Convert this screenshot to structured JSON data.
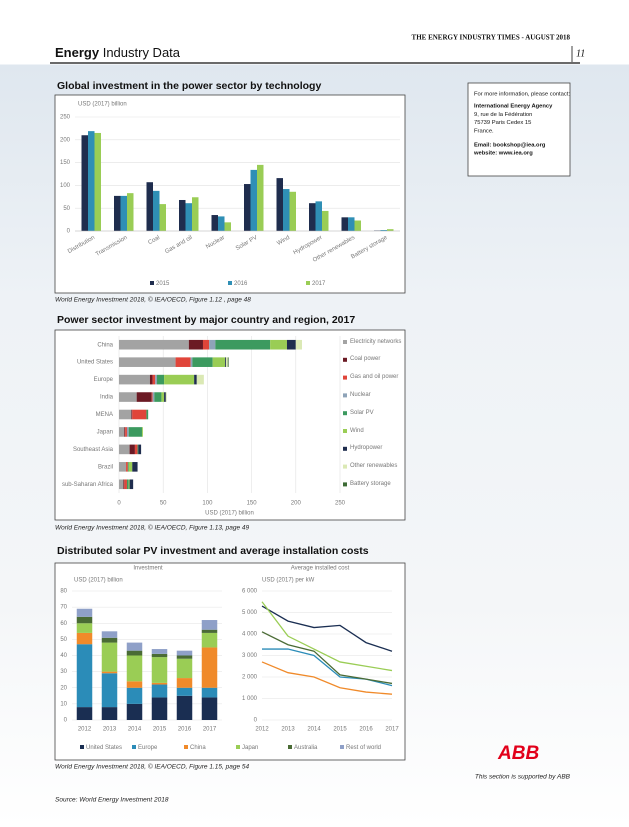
{
  "header": {
    "masthead": "THE ENERGY INDUSTRY TIMES - AUGUST 2018",
    "section_bold": "Energy",
    "section_rest": "Industry Data",
    "page": "11"
  },
  "contact": {
    "lines": [
      "For more information, please contact:",
      "International Energy Agency",
      "9, rue de la Fédération",
      "75739 Paris Cedex 15",
      "France.",
      "Email: bookshop@iea.org",
      "website: www.iea.org"
    ]
  },
  "chart_data": [
    {
      "type": "bar",
      "title": "Global investment in the power sector by technology",
      "y_label": "USD (2017) billion",
      "caption": "World Energy Investment 2018, © IEA/OECD, Figure 1.12 , page 48",
      "categories": [
        "Distribution",
        "Transmission",
        "Coal",
        "Gas and oil",
        "Nuclear",
        "Solar PV",
        "Wind",
        "Hydropower",
        "Other renewables",
        "Battery storage"
      ],
      "series": [
        {
          "name": "2015",
          "color": "#1f2d4e",
          "values": [
            210,
            77,
            107,
            68,
            35,
            103,
            116,
            61,
            30,
            1
          ]
        },
        {
          "name": "2016",
          "color": "#2f8fb5",
          "values": [
            219,
            77,
            88,
            61,
            32,
            134,
            92,
            65,
            30,
            2
          ]
        },
        {
          "name": "2017",
          "color": "#9acd55",
          "values": [
            215,
            83,
            59,
            74,
            19,
            145,
            86,
            44,
            23,
            4
          ]
        }
      ],
      "ylim": [
        0,
        250
      ],
      "yticks": [
        0,
        50,
        100,
        150,
        200,
        250
      ],
      "grid": true
    },
    {
      "type": "hbar",
      "title": "Power sector investment by major country and region, 2017",
      "x_label": "USD (2017) billion",
      "caption": "World Energy Investment 2018, © IEA/OECD, Figure 1.13, page 49",
      "categories": [
        "China",
        "United States",
        "Europe",
        "India",
        "MENA",
        "Japan",
        "Southeast Asia",
        "Brazil",
        "sub-Saharan Africa"
      ],
      "series": [
        {
          "name": "Electricity networks",
          "color": "#a3a3a3",
          "values": [
            79,
            64,
            35,
            20,
            14,
            6,
            12,
            8,
            5
          ]
        },
        {
          "name": "Coal power",
          "color": "#6b1a24",
          "values": [
            16,
            0,
            3,
            17,
            1,
            1,
            6,
            0,
            1
          ]
        },
        {
          "name": "Gas and oil power",
          "color": "#e0453a",
          "values": [
            7,
            17,
            3,
            1,
            16,
            2,
            3,
            2,
            3
          ]
        },
        {
          "name": "Nuclear",
          "color": "#8ea3b8",
          "values": [
            7,
            2,
            2,
            2,
            0,
            2,
            0,
            0,
            0
          ]
        },
        {
          "name": "Solar PV",
          "color": "#3c9a5f",
          "values": [
            62,
            23,
            8,
            8,
            2,
            15,
            1,
            1,
            2
          ]
        },
        {
          "name": "Wind",
          "color": "#9acd55",
          "values": [
            19,
            14,
            34,
            3,
            0,
            1,
            0,
            4,
            1
          ]
        },
        {
          "name": "Hydropower",
          "color": "#1f2d4e",
          "values": [
            10,
            1,
            3,
            2,
            0,
            0,
            3,
            6,
            4
          ]
        },
        {
          "name": "Other renewables",
          "color": "#dbe9b5",
          "values": [
            7,
            2,
            8,
            1,
            0,
            0,
            0,
            0,
            0
          ]
        },
        {
          "name": "Battery storage",
          "color": "#3d6b35",
          "values": [
            0,
            1,
            0,
            0,
            0,
            0,
            0,
            0,
            0
          ]
        }
      ],
      "xlim": [
        0,
        250
      ],
      "xticks": [
        0,
        50,
        100,
        150,
        200,
        250
      ],
      "grid": true
    },
    {
      "type": "stackedbar",
      "title": "Distributed solar PV investment and average installation costs",
      "subtitle": "Investment",
      "y_label": "USD (2017) billion",
      "caption": "World Energy Investment 2018, © IEA/OECD, Figure 1.15, page 54",
      "categories": [
        "2012",
        "2013",
        "2014",
        "2015",
        "2016",
        "2017"
      ],
      "series": [
        {
          "name": "United States",
          "color": "#1a2e52",
          "values": [
            8,
            8,
            10,
            14,
            15,
            14
          ]
        },
        {
          "name": "Europe",
          "color": "#2b8cb8",
          "values": [
            39,
            21,
            10,
            8,
            5,
            6
          ]
        },
        {
          "name": "China",
          "color": "#f08a2a",
          "values": [
            7,
            1,
            4,
            1,
            6,
            25
          ]
        },
        {
          "name": "Japan",
          "color": "#9acd55",
          "values": [
            6,
            18,
            16,
            16,
            12,
            9
          ]
        },
        {
          "name": "Australia",
          "color": "#4a6b35",
          "values": [
            4,
            3,
            3,
            2,
            2,
            2
          ]
        },
        {
          "name": "Rest of world",
          "color": "#8fa0c8",
          "values": [
            5,
            4,
            5,
            3,
            3,
            6
          ]
        }
      ],
      "ylim": [
        0,
        80
      ],
      "yticks": [
        0,
        10,
        20,
        30,
        40,
        50,
        60,
        70,
        80
      ],
      "grid": true
    },
    {
      "type": "line",
      "subtitle": "Average installed cost",
      "y_label": "USD (2017) per kW",
      "categories": [
        "2012",
        "2013",
        "2014",
        "2015",
        "2016",
        "2017"
      ],
      "series": [
        {
          "color": "#1a2e52",
          "values": [
            5300,
            4600,
            4300,
            4400,
            3600,
            3200
          ]
        },
        {
          "color": "#2b8cb8",
          "values": [
            3300,
            3300,
            3000,
            2000,
            1900,
            1600
          ]
        },
        {
          "color": "#f08a2a",
          "values": [
            2700,
            2200,
            2000,
            1500,
            1300,
            1200
          ]
        },
        {
          "color": "#9acd55",
          "values": [
            5500,
            3900,
            3300,
            2700,
            2500,
            2300
          ]
        },
        {
          "color": "#4a6b35",
          "values": [
            4100,
            3500,
            3200,
            2100,
            1900,
            1700
          ]
        }
      ],
      "ylim": [
        0,
        6000
      ],
      "yticks": [
        0,
        {
          "value": 1000,
          "label": "1 000"
        },
        {
          "value": 2000,
          "label": "2 000"
        },
        {
          "value": 3000,
          "label": "3 000"
        },
        {
          "value": 4000,
          "label": "4 000"
        },
        {
          "value": 5000,
          "label": "5 000"
        },
        {
          "value": 6000,
          "label": "6 000"
        }
      ],
      "grid": true
    }
  ],
  "sponsor": {
    "logo": "ABB",
    "text": "This section is supported by ABB"
  },
  "source": "Source: World Energy Investment 2018"
}
